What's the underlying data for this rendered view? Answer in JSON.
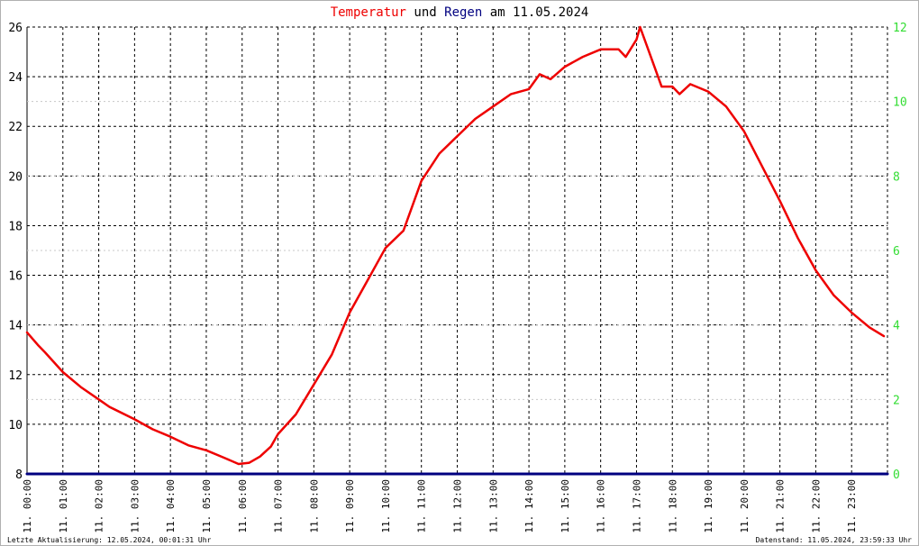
{
  "title": {
    "part1": "Temperatur",
    "part2": " und ",
    "part3": "Regen",
    "part4": " am 11.05.2024"
  },
  "colors": {
    "temperature": "#ee0000",
    "rain": "#000080",
    "rain_axis": "#33dd33",
    "grid": "#000000"
  },
  "footer": {
    "left": "Letzte Aktualisierung: 12.05.2024, 00:01:31 Uhr",
    "right": "Datenstand: 11.05.2024, 23:59:33 Uhr"
  },
  "chart_data": {
    "type": "line",
    "x_unit": "hour",
    "xlim": [
      0,
      24
    ],
    "ylim": [
      8,
      26
    ],
    "y2lim": [
      0,
      12
    ],
    "y_ticks": [
      "8",
      "10",
      "12",
      "14",
      "16",
      "18",
      "20",
      "22",
      "24",
      "26"
    ],
    "y2_ticks": [
      "0",
      "2",
      "4",
      "6",
      "8",
      "10",
      "12"
    ],
    "x_ticks": [
      "11. 00:00",
      "11. 01:00",
      "11. 02:00",
      "11. 03:00",
      "11. 04:00",
      "11. 05:00",
      "11. 06:00",
      "11. 07:00",
      "11. 08:00",
      "11. 09:00",
      "11. 10:00",
      "11. 11:00",
      "11. 12:00",
      "11. 13:00",
      "11. 14:00",
      "11. 15:00",
      "11. 16:00",
      "11. 17:00",
      "11. 18:00",
      "11. 19:00",
      "11. 20:00",
      "11. 21:00",
      "11. 22:00",
      "11. 23:00"
    ],
    "series": [
      {
        "name": "Temperatur",
        "axis": "left",
        "x": [
          0,
          0.3,
          0.5,
          1.0,
          1.5,
          2.0,
          2.3,
          3.0,
          3.5,
          4.0,
          4.5,
          5.0,
          5.5,
          5.9,
          6.2,
          6.5,
          6.8,
          7.0,
          7.5,
          8.0,
          8.5,
          9.0,
          9.5,
          10.0,
          10.5,
          11.0,
          11.5,
          12.0,
          12.5,
          13.0,
          13.5,
          14.0,
          14.3,
          14.6,
          15.0,
          15.5,
          16.0,
          16.5,
          16.7,
          17.0,
          17.1,
          17.4,
          17.7,
          18.0,
          18.2,
          18.5,
          19.0,
          19.5,
          20.0,
          20.5,
          21.0,
          21.5,
          22.0,
          22.5,
          23.0,
          23.5,
          23.9
        ],
        "values": [
          13.7,
          13.2,
          12.9,
          12.1,
          11.5,
          11.0,
          10.7,
          10.2,
          9.8,
          9.5,
          9.15,
          8.95,
          8.65,
          8.4,
          8.45,
          8.7,
          9.1,
          9.6,
          10.4,
          11.6,
          12.8,
          14.5,
          15.8,
          17.1,
          17.8,
          19.8,
          20.9,
          21.6,
          22.3,
          22.8,
          23.3,
          23.5,
          24.1,
          23.9,
          24.4,
          24.8,
          25.1,
          25.1,
          24.8,
          25.5,
          26.0,
          24.8,
          23.6,
          23.6,
          23.3,
          23.7,
          23.4,
          22.8,
          21.8,
          20.4,
          19.0,
          17.5,
          16.2,
          15.2,
          14.5,
          13.9,
          13.55
        ]
      },
      {
        "name": "Regen",
        "axis": "right",
        "x": [
          0,
          24
        ],
        "values": [
          0,
          0
        ]
      }
    ]
  }
}
